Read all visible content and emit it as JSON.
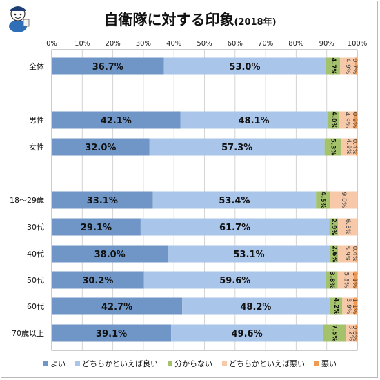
{
  "title": {
    "main": "自衛隊に対する印象",
    "sub": "(2018年)"
  },
  "colors": {
    "よい": "#6f96c6",
    "どちらかといえば良い": "#a9c5ea",
    "分からない": "#a3c26b",
    "どちらかといえば悪い": "#f7c9a8",
    "悪い": "#f09a53"
  },
  "chart_data": {
    "type": "bar",
    "orientation": "horizontal",
    "stacked": true,
    "xlim": [
      0,
      100
    ],
    "xticks": [
      "0%",
      "10%",
      "20%",
      "30%",
      "40%",
      "50%",
      "60%",
      "70%",
      "80%",
      "90%",
      "100%"
    ],
    "categories": [
      "全体",
      "男性",
      "女性",
      "18〜29歳",
      "30代",
      "40代",
      "50代",
      "60代",
      "70歳以上"
    ],
    "series": [
      {
        "name": "よい",
        "values": [
          36.7,
          42.1,
          32.0,
          33.1,
          29.1,
          38.0,
          30.2,
          42.7,
          39.1
        ],
        "labels": [
          "36.7%",
          "42.1%",
          "32.0%",
          "33.1%",
          "29.1%",
          "38.0%",
          "30.2%",
          "42.7%",
          "39.1%"
        ]
      },
      {
        "name": "どちらかといえば良い",
        "values": [
          53.0,
          48.1,
          57.3,
          53.4,
          61.7,
          53.1,
          59.6,
          48.2,
          49.6
        ],
        "labels": [
          "53.0%",
          "48.1%",
          "57.3%",
          "53.4%",
          "61.7%",
          "53.1%",
          "59.6%",
          "48.2%",
          "49.6%"
        ]
      },
      {
        "name": "分からない",
        "values": [
          4.7,
          4.0,
          5.3,
          4.5,
          2.9,
          2.6,
          3.8,
          4.2,
          7.5
        ],
        "labels": [
          "4.7%",
          "4.0%",
          "5.3%",
          "4.5%",
          "2.9%",
          "2.6%",
          "3.8%",
          "4.2%",
          "7.5%"
        ]
      },
      {
        "name": "どちらかといえば悪い",
        "values": [
          4.9,
          4.9,
          4.9,
          9.0,
          6.3,
          5.9,
          5.3,
          3.9,
          3.2
        ],
        "labels": [
          "4.9%",
          "4.9%",
          "4.9%",
          "9.0%",
          "6.3%",
          "5.9%",
          "5.3%",
          "3.9%",
          "3.2%"
        ]
      },
      {
        "name": "悪い",
        "values": [
          0.7,
          0.9,
          0.4,
          0.0,
          0.0,
          0.4,
          1.1,
          1.1,
          0.6
        ],
        "labels": [
          "0.7%",
          "0.9%",
          "0.4%",
          "",
          "",
          "0.4%",
          "1.1%",
          "1.1%",
          "0.6%"
        ]
      }
    ],
    "legend": {
      "position": "bottom",
      "entries": [
        "よい",
        "どちらかといえば良い",
        "分からない",
        "どちらかといえば悪い",
        "悪い"
      ]
    },
    "grid": true
  }
}
